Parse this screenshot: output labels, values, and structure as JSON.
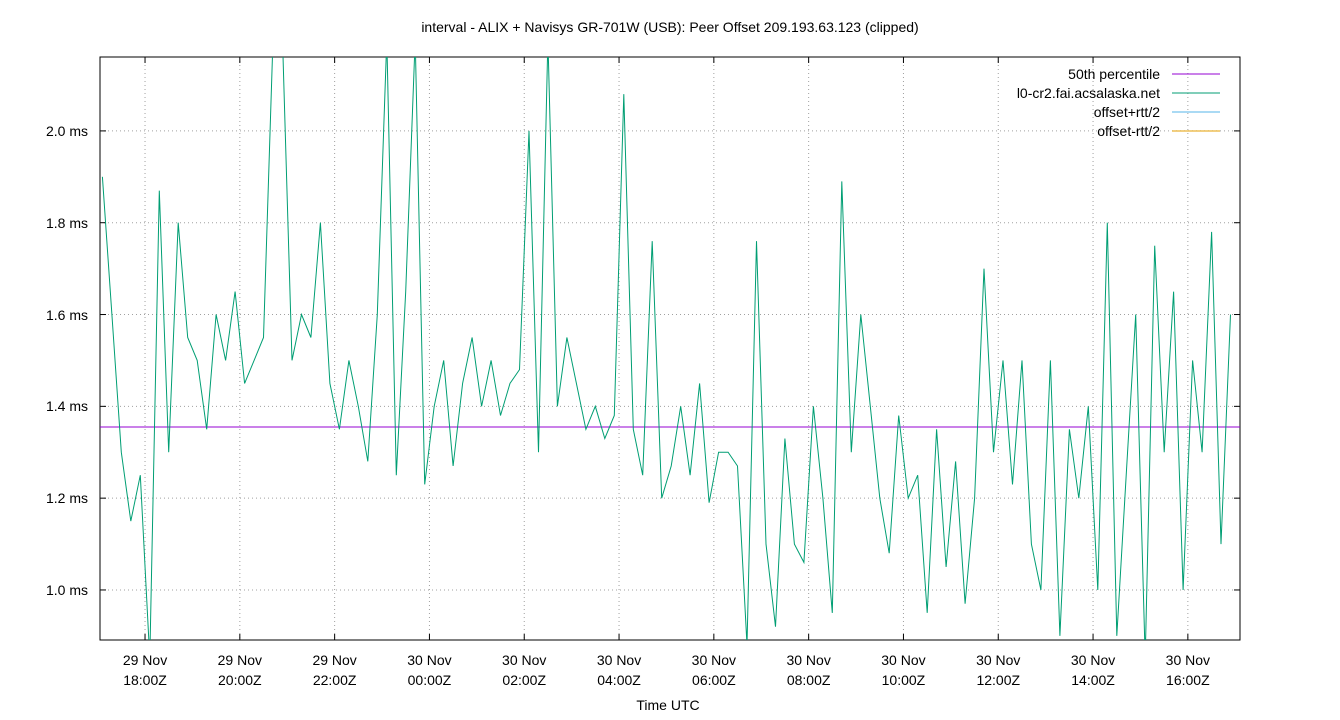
{
  "chart_data": {
    "type": "line",
    "title": "interval - ALIX + Navisys GR-701W (USB): Peer Offset 209.193.63.123 (clipped)",
    "x_label": "Time UTC",
    "xlim": [
      17.05,
      41.1
    ],
    "xticks": [
      {
        "value": 18,
        "label": "29 Nov\n18:00Z"
      },
      {
        "value": 20,
        "label": "29 Nov\n20:00Z"
      },
      {
        "value": 22,
        "label": "29 Nov\n22:00Z"
      },
      {
        "value": 24,
        "label": "30 Nov\n00:00Z"
      },
      {
        "value": 26,
        "label": "30 Nov\n02:00Z"
      },
      {
        "value": 28,
        "label": "30 Nov\n04:00Z"
      },
      {
        "value": 30,
        "label": "30 Nov\n06:00Z"
      },
      {
        "value": 32,
        "label": "30 Nov\n08:00Z"
      },
      {
        "value": 34,
        "label": "30 Nov\n10:00Z"
      },
      {
        "value": 36,
        "label": "30 Nov\n12:00Z"
      },
      {
        "value": 38,
        "label": "30 Nov\n14:00Z"
      },
      {
        "value": 40,
        "label": "30 Nov\n16:00Z"
      }
    ],
    "ylim": [
      0.891,
      2.161
    ],
    "yticks": [
      {
        "value": 1.0,
        "label": "1.0 ms"
      },
      {
        "value": 1.2,
        "label": "1.2 ms"
      },
      {
        "value": 1.4,
        "label": "1.4 ms"
      },
      {
        "value": 1.6,
        "label": "1.6 ms"
      },
      {
        "value": 1.8,
        "label": "1.8 ms"
      },
      {
        "value": 2.0,
        "label": "2.0 ms"
      }
    ],
    "grid": true,
    "legend": "top-right",
    "series": [
      {
        "name": "50th percentile",
        "color": "#9400d3",
        "x": [
          17.05,
          41.1
        ],
        "values": [
          1.355,
          1.355
        ]
      },
      {
        "name": "l0-cr2.fai.acsalaska.net",
        "color": "#009e73",
        "x": [
          17.1,
          17.3,
          17.5,
          17.7,
          17.9,
          18.1,
          18.3,
          18.5,
          18.7,
          18.9,
          19.1,
          19.3,
          19.5,
          19.7,
          19.9,
          20.1,
          20.3,
          20.5,
          20.7,
          20.9,
          21.1,
          21.3,
          21.5,
          21.7,
          21.9,
          22.1,
          22.3,
          22.5,
          22.7,
          22.9,
          23.1,
          23.3,
          23.5,
          23.7,
          23.9,
          24.1,
          24.3,
          24.5,
          24.7,
          24.9,
          25.1,
          25.3,
          25.5,
          25.7,
          25.9,
          26.1,
          26.3,
          26.5,
          26.7,
          26.9,
          27.1,
          27.3,
          27.5,
          27.7,
          27.9,
          28.1,
          28.3,
          28.5,
          28.7,
          28.9,
          29.1,
          29.3,
          29.5,
          29.7,
          29.9,
          30.1,
          30.3,
          30.5,
          30.7,
          30.9,
          31.1,
          31.3,
          31.5,
          31.7,
          31.9,
          32.1,
          32.3,
          32.5,
          32.7,
          32.9,
          33.1,
          33.3,
          33.5,
          33.7,
          33.9,
          34.1,
          34.3,
          34.5,
          34.7,
          34.9,
          35.1,
          35.3,
          35.5,
          35.7,
          35.9,
          36.1,
          36.3,
          36.5,
          36.7,
          36.9,
          37.1,
          37.3,
          37.5,
          37.7,
          37.9,
          38.1,
          38.3,
          38.5,
          38.7,
          38.9,
          39.1,
          39.3,
          39.5,
          39.7,
          39.9,
          40.1,
          40.3,
          40.5,
          40.7,
          40.9
        ],
        "values": [
          1.9,
          1.6,
          1.3,
          1.15,
          1.25,
          0.85,
          1.87,
          1.3,
          1.8,
          1.55,
          1.5,
          1.35,
          1.6,
          1.5,
          1.65,
          1.45,
          1.5,
          1.55,
          2.2,
          2.2,
          1.5,
          1.6,
          1.55,
          1.8,
          1.45,
          1.35,
          1.5,
          1.4,
          1.28,
          1.6,
          2.2,
          1.25,
          1.65,
          2.2,
          1.23,
          1.4,
          1.5,
          1.27,
          1.45,
          1.55,
          1.4,
          1.5,
          1.38,
          1.45,
          1.48,
          2.0,
          1.3,
          2.2,
          1.4,
          1.55,
          1.45,
          1.35,
          1.4,
          1.33,
          1.38,
          2.08,
          1.35,
          1.25,
          1.76,
          1.2,
          1.27,
          1.4,
          1.25,
          1.45,
          1.19,
          1.3,
          1.3,
          1.27,
          0.88,
          1.76,
          1.1,
          0.92,
          1.33,
          1.1,
          1.06,
          1.4,
          1.2,
          0.95,
          1.89,
          1.3,
          1.6,
          1.4,
          1.2,
          1.08,
          1.38,
          1.2,
          1.25,
          0.95,
          1.35,
          1.05,
          1.28,
          0.97,
          1.2,
          1.7,
          1.3,
          1.5,
          1.23,
          1.5,
          1.1,
          1.0,
          1.5,
          0.9,
          1.35,
          1.2,
          1.4,
          1.0,
          1.8,
          0.9,
          1.25,
          1.6,
          0.85,
          1.75,
          1.3,
          1.65,
          1.0,
          1.5,
          1.3,
          1.78,
          1.1,
          1.6
        ]
      },
      {
        "name": "offset+rtt/2",
        "color": "#56b4e9",
        "x": [],
        "values": []
      },
      {
        "name": "offset-rtt/2",
        "color": "#e69f00",
        "x": [],
        "values": []
      }
    ]
  }
}
